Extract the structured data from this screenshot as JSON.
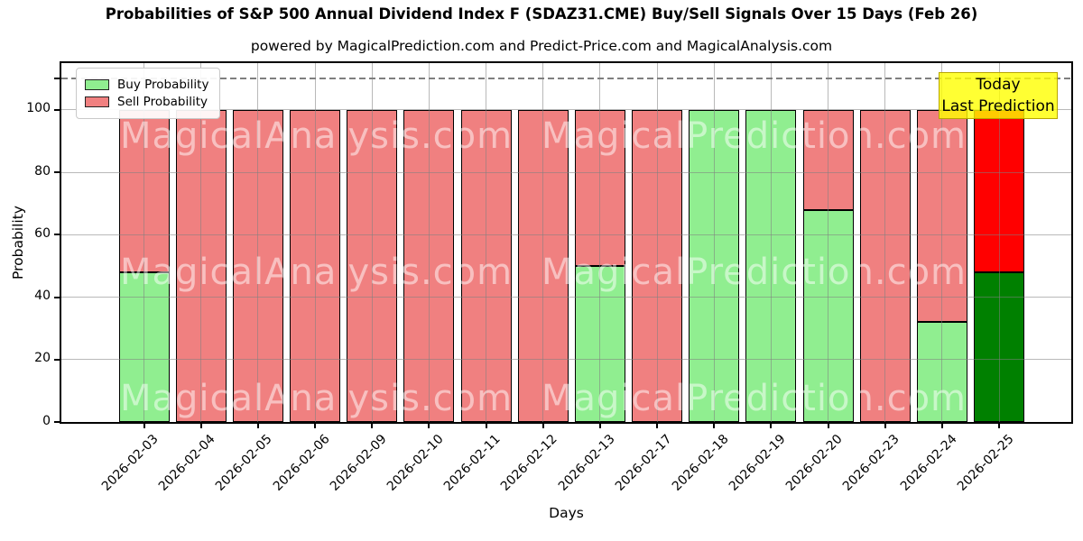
{
  "title": "Probabilities of S&P 500 Annual Dividend Index F (SDAZ31.CME) Buy/Sell Signals Over 15 Days (Feb 26)",
  "subtitle": "powered by MagicalPrediction.com and Predict-Price.com and MagicalAnalysis.com",
  "legend": {
    "buy_label": "Buy Probability",
    "sell_label": "Sell Probability"
  },
  "annotation": {
    "line1": "Today",
    "line2": "Last Prediction"
  },
  "watermarks": {
    "left_text": "MagicalAnalysis.com",
    "right_text": "MagicalPrediction.com"
  },
  "axes": {
    "x_label": "Days",
    "y_label": "Probability",
    "y_ticks": [
      0,
      20,
      40,
      60,
      80,
      100
    ],
    "y_max": 115,
    "dashed_line_y": 110
  },
  "colors": {
    "buy": "#90ee90",
    "sell": "#f08080",
    "buy_today": "#008000",
    "sell_today": "#ff0000",
    "annotation_bg": "rgba(255,255,0,0.8)",
    "annotation_border": "#b8a600",
    "grid": "rgba(128,128,128,0.55)"
  },
  "chart_data": {
    "type": "bar",
    "stacked": true,
    "title": "Probabilities of S&P 500 Annual Dividend Index F (SDAZ31.CME) Buy/Sell Signals Over 15 Days (Feb 26)",
    "xlabel": "Days",
    "ylabel": "Probability",
    "ylim": [
      0,
      115
    ],
    "grid": true,
    "legend_position": "upper-left",
    "categories": [
      "2026-02-03",
      "2026-02-04",
      "2026-02-05",
      "2026-02-06",
      "2026-02-09",
      "2026-02-10",
      "2026-02-11",
      "2026-02-12",
      "2026-02-13",
      "2026-02-17",
      "2026-02-18",
      "2026-02-19",
      "2026-02-20",
      "2026-02-23",
      "2026-02-24",
      "2026-02-25"
    ],
    "series": [
      {
        "name": "Buy Probability",
        "values": [
          48,
          0,
          0,
          0,
          0,
          0,
          0,
          0,
          50,
          0,
          100,
          100,
          68,
          0,
          32,
          48
        ]
      },
      {
        "name": "Sell Probability",
        "values": [
          52,
          100,
          100,
          100,
          100,
          100,
          100,
          100,
          50,
          100,
          0,
          0,
          32,
          100,
          68,
          52
        ]
      }
    ],
    "today_index": 15
  }
}
